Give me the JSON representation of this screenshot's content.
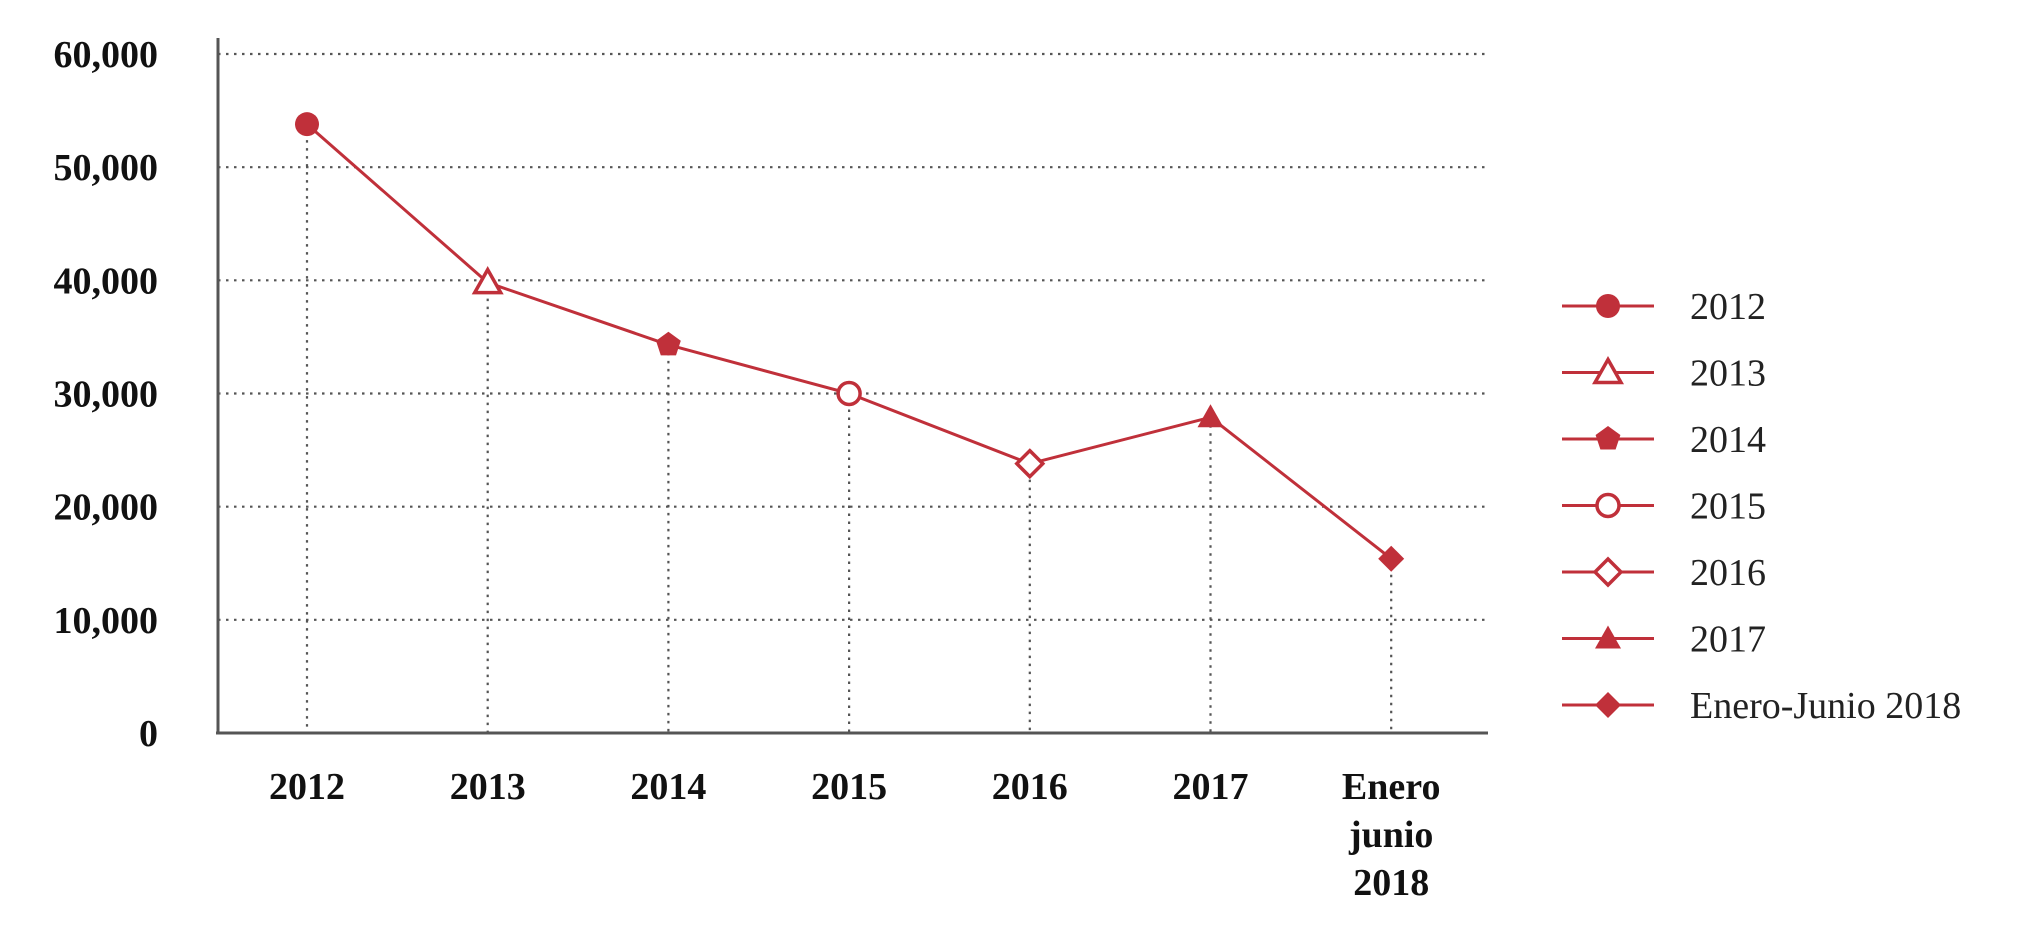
{
  "chart_data": {
    "type": "line",
    "categories": [
      [
        "2012"
      ],
      [
        "2013"
      ],
      [
        "2014"
      ],
      [
        "2015"
      ],
      [
        "2016"
      ],
      [
        "2017"
      ],
      [
        "Enero",
        "junio",
        "2018"
      ]
    ],
    "values": [
      53800,
      39800,
      34300,
      30000,
      23800,
      27900,
      15400
    ],
    "markers": [
      "circle",
      "triangle-open",
      "pentagon",
      "circle-open",
      "diamond-open",
      "triangle",
      "diamond"
    ],
    "ylim": [
      0,
      60000
    ],
    "yticks": [
      0,
      10000,
      20000,
      30000,
      40000,
      50000,
      60000
    ],
    "ytick_labels": [
      "0",
      "10,000",
      "20,000",
      "30,000",
      "40,000",
      "50,000",
      "60,000"
    ],
    "grid": true,
    "legend_position": "right",
    "legend": [
      {
        "label": "2012",
        "marker": "circle"
      },
      {
        "label": "2013",
        "marker": "triangle-open"
      },
      {
        "label": "2014",
        "marker": "pentagon"
      },
      {
        "label": "2015",
        "marker": "circle-open"
      },
      {
        "label": "2016",
        "marker": "diamond-open"
      },
      {
        "label": "2017",
        "marker": "triangle"
      },
      {
        "label": "Enero-Junio 2018",
        "marker": "diamond"
      }
    ],
    "colors": {
      "series": "#c0303a",
      "axis": "#555555",
      "grid": "#555555"
    }
  }
}
